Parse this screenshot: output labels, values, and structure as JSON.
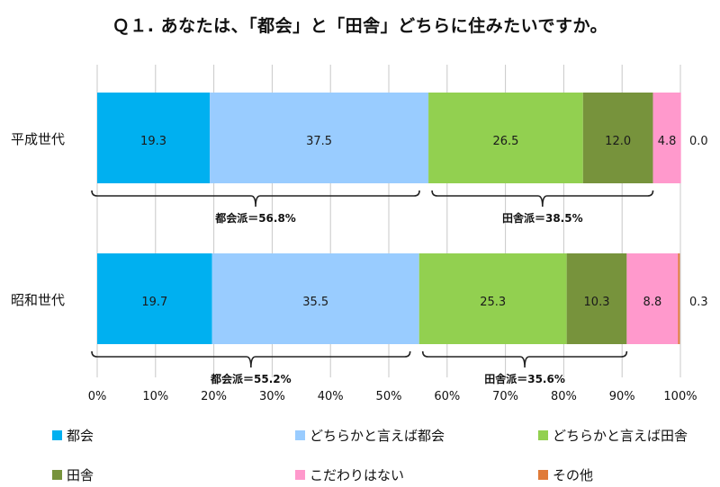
{
  "chart_data": {
    "type": "bar",
    "orientation": "horizontal",
    "stacked": true,
    "title": "Ｑ１. あなたは、「都会」と「田舎」どちらに住みたいですか。",
    "categories": [
      "平成世代",
      "昭和世代"
    ],
    "series": [
      {
        "name": "都会",
        "color": "#00B0F0",
        "values": [
          19.3,
          19.7
        ]
      },
      {
        "name": "どちらかと言えば都会",
        "color": "#99CCFF",
        "values": [
          37.5,
          35.5
        ]
      },
      {
        "name": "どちらかと言えば田舎",
        "color": "#92D050",
        "values": [
          26.5,
          25.3
        ]
      },
      {
        "name": "田舎",
        "color": "#77933C",
        "values": [
          12.0,
          10.3
        ]
      },
      {
        "name": "こだわりはない",
        "color": "#FF99CC",
        "values": [
          4.8,
          8.8
        ]
      },
      {
        "name": "その他",
        "color": "#E07B39",
        "values": [
          0.0,
          0.3
        ]
      }
    ],
    "xlim": [
      0,
      100
    ],
    "xticks": [
      "0%",
      "10%",
      "20%",
      "30%",
      "40%",
      "50%",
      "60%",
      "70%",
      "80%",
      "90%",
      "100%"
    ],
    "grid": true,
    "legend_position": "bottom",
    "annotations": [
      {
        "category": "平成世代",
        "group": "city",
        "text": "都会派＝56.8%"
      },
      {
        "category": "平成世代",
        "group": "country",
        "text": "田舎派＝38.5%"
      },
      {
        "category": "昭和世代",
        "group": "city",
        "text": "都会派＝55.2%"
      },
      {
        "category": "昭和世代",
        "group": "country",
        "text": "田舎派＝35.6%"
      }
    ]
  }
}
